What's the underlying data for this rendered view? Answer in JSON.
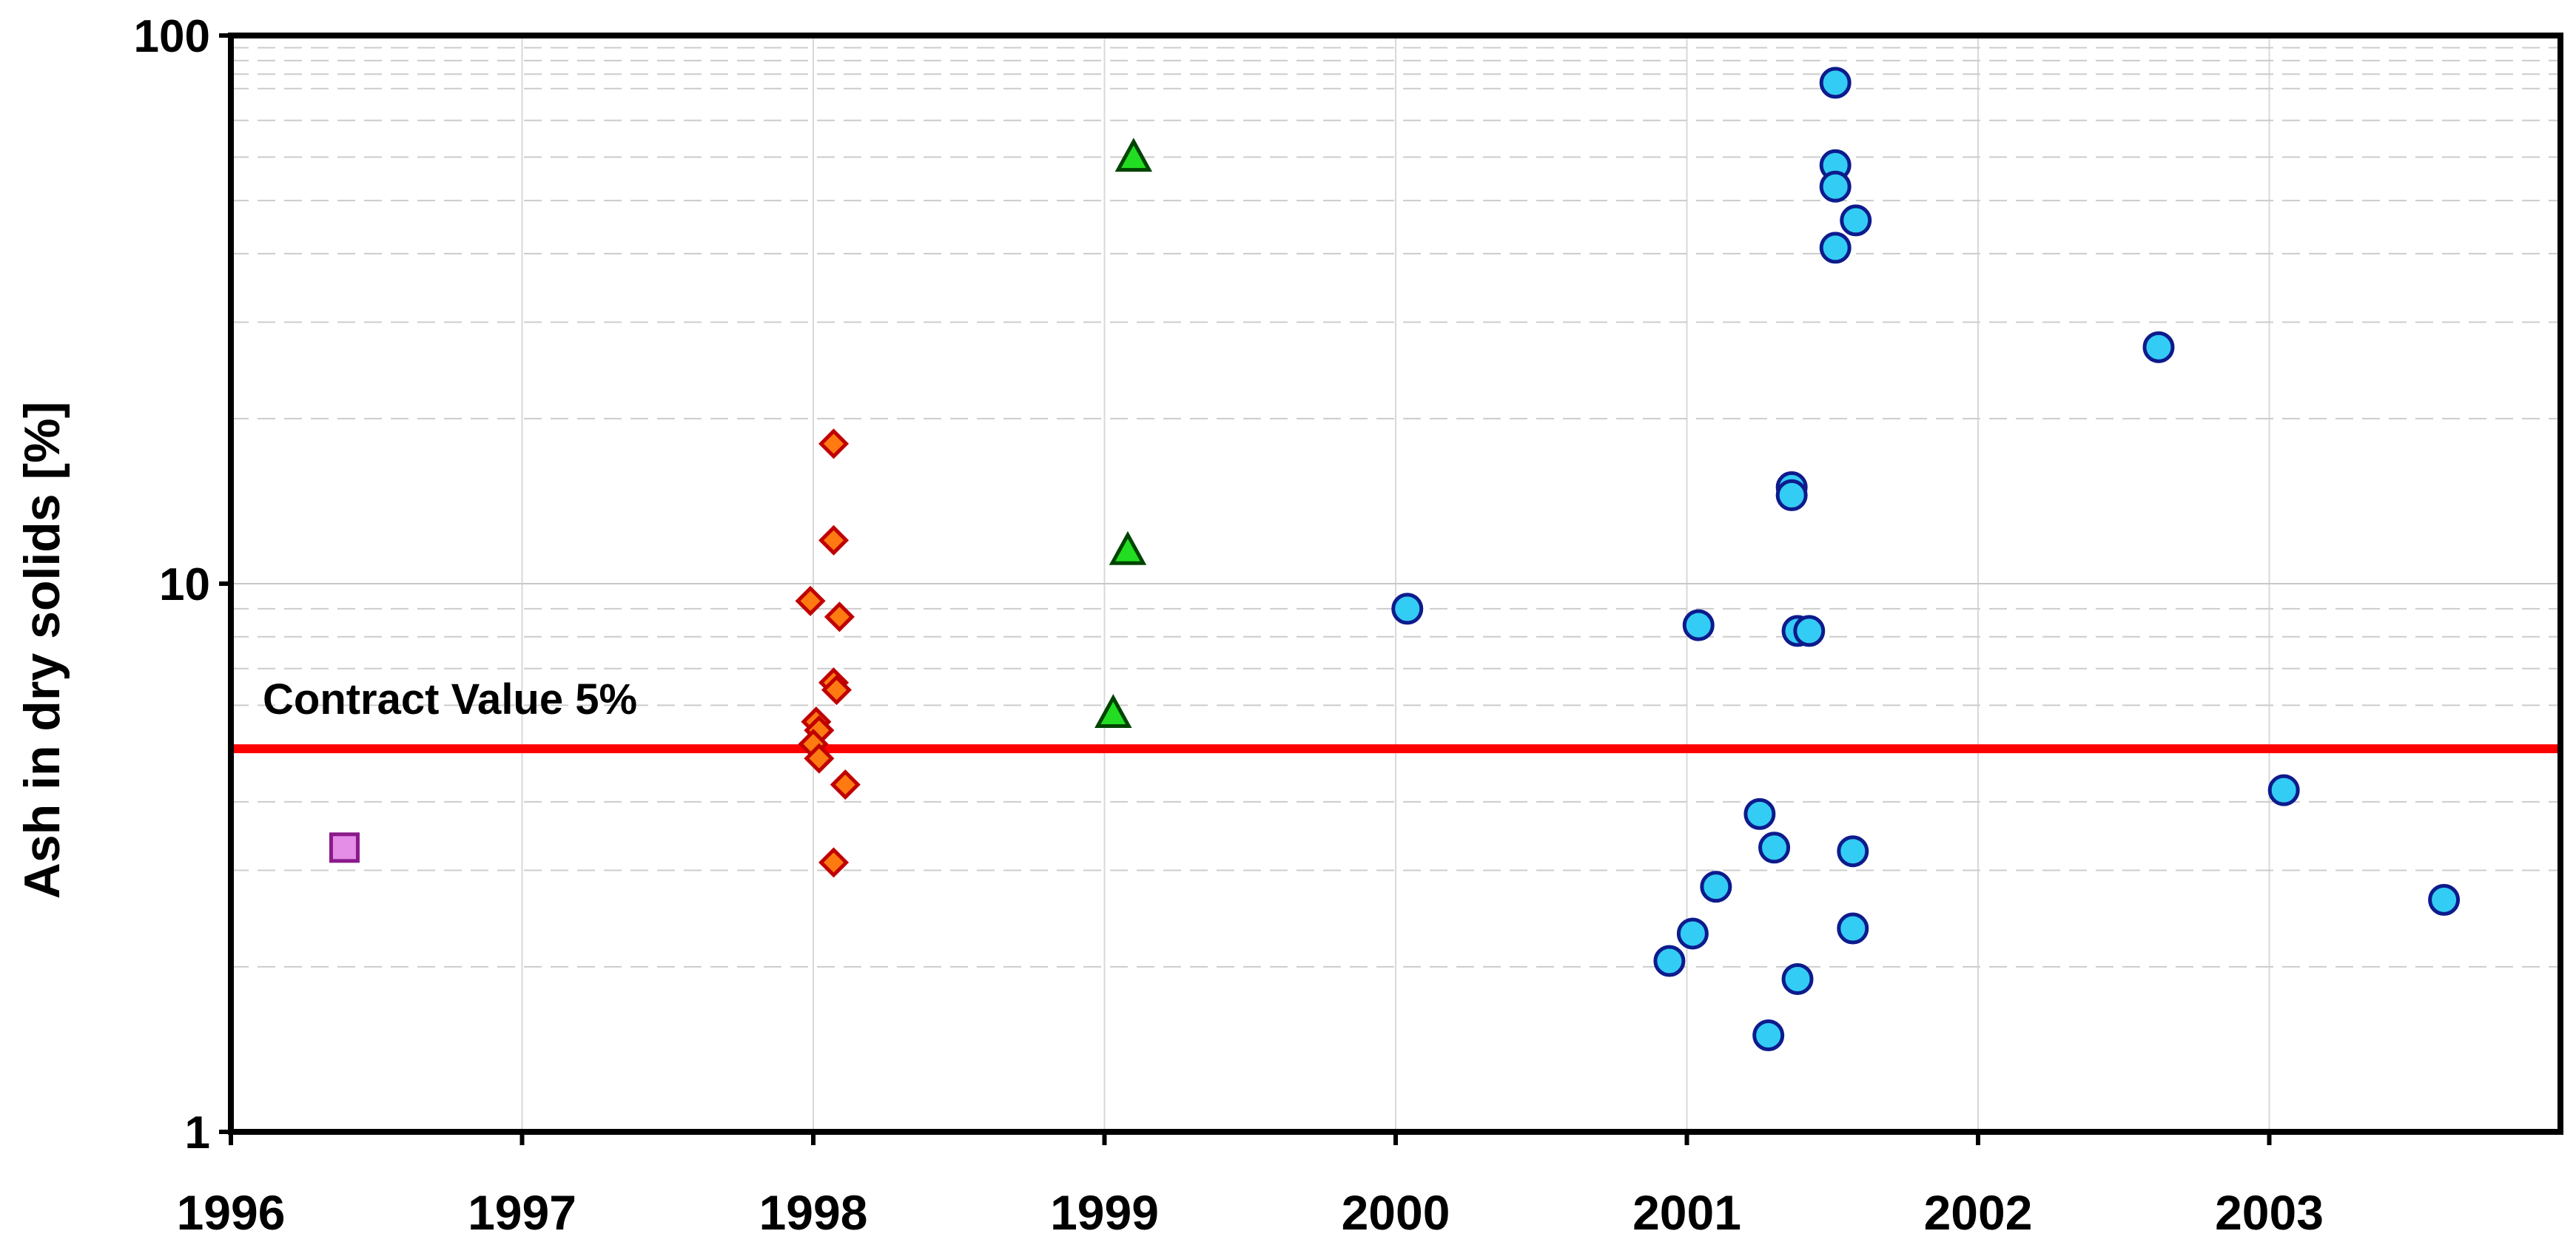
{
  "chart_data": {
    "type": "scatter",
    "title": "",
    "xlabel": "",
    "ylabel": "Ash in dry solids [%]",
    "y_scale": "log",
    "ylim": [
      1,
      100
    ],
    "xlim": [
      1996,
      2004
    ],
    "x_ticks": [
      {
        "value": 1996,
        "label": "1996"
      },
      {
        "value": 1997,
        "label": "1997"
      },
      {
        "value": 1998,
        "label": "1998"
      },
      {
        "value": 1999,
        "label": "1999"
      },
      {
        "value": 2000,
        "label": "2000"
      },
      {
        "value": 2001,
        "label": "2001"
      },
      {
        "value": 2002,
        "label": "2002"
      },
      {
        "value": 2003,
        "label": "2003"
      }
    ],
    "y_ticks": [
      {
        "value": 1,
        "label": "1"
      },
      {
        "value": 10,
        "label": "10"
      },
      {
        "value": 100,
        "label": "100"
      }
    ],
    "grid": true,
    "legend": "none",
    "reference_line": {
      "y": 5,
      "label": "Contract Value 5%",
      "color": "#ff0000"
    },
    "series": [
      {
        "marker": "square",
        "color": "#e58ee8",
        "edge": "#8b1a8b",
        "points": [
          [
            1996.39,
            3.3
          ]
        ]
      },
      {
        "marker": "diamond",
        "color": "#ff7a10",
        "edge": "#c00000",
        "points": [
          [
            1998.07,
            18
          ],
          [
            1998.07,
            12
          ],
          [
            1997.99,
            9.3
          ],
          [
            1998.09,
            8.7
          ],
          [
            1998.07,
            6.6
          ],
          [
            1998.08,
            6.4
          ],
          [
            1998.01,
            5.6
          ],
          [
            1998.02,
            5.4
          ],
          [
            1998.0,
            5.1
          ],
          [
            1998.02,
            4.8
          ],
          [
            1998.11,
            4.3
          ],
          [
            1998.07,
            3.1
          ]
        ]
      },
      {
        "marker": "triangle",
        "color": "#22dd22",
        "edge": "#004400",
        "points": [
          [
            1999.1,
            60
          ],
          [
            1999.08,
            11.5
          ],
          [
            1999.03,
            5.8
          ]
        ]
      },
      {
        "marker": "circle",
        "color": "#33ccf5",
        "edge": "#0d1b8c",
        "points": [
          [
            2001.51,
            82
          ],
          [
            2001.51,
            58
          ],
          [
            2001.51,
            53
          ],
          [
            2001.58,
            46
          ],
          [
            2001.51,
            41
          ],
          [
            2002.62,
            27
          ],
          [
            2001.36,
            15
          ],
          [
            2001.36,
            14.5
          ],
          [
            2000.04,
            9
          ],
          [
            2001.04,
            8.4
          ],
          [
            2001.38,
            8.2
          ],
          [
            2001.42,
            8.2
          ],
          [
            2003.05,
            4.2
          ],
          [
            2001.25,
            3.8
          ],
          [
            2001.3,
            3.3
          ],
          [
            2001.57,
            3.25
          ],
          [
            2001.1,
            2.8
          ],
          [
            2003.6,
            2.65
          ],
          [
            2001.02,
            2.3
          ],
          [
            2001.57,
            2.35
          ],
          [
            2000.94,
            2.05
          ],
          [
            2001.38,
            1.9
          ],
          [
            2001.28,
            1.5
          ]
        ]
      }
    ]
  }
}
